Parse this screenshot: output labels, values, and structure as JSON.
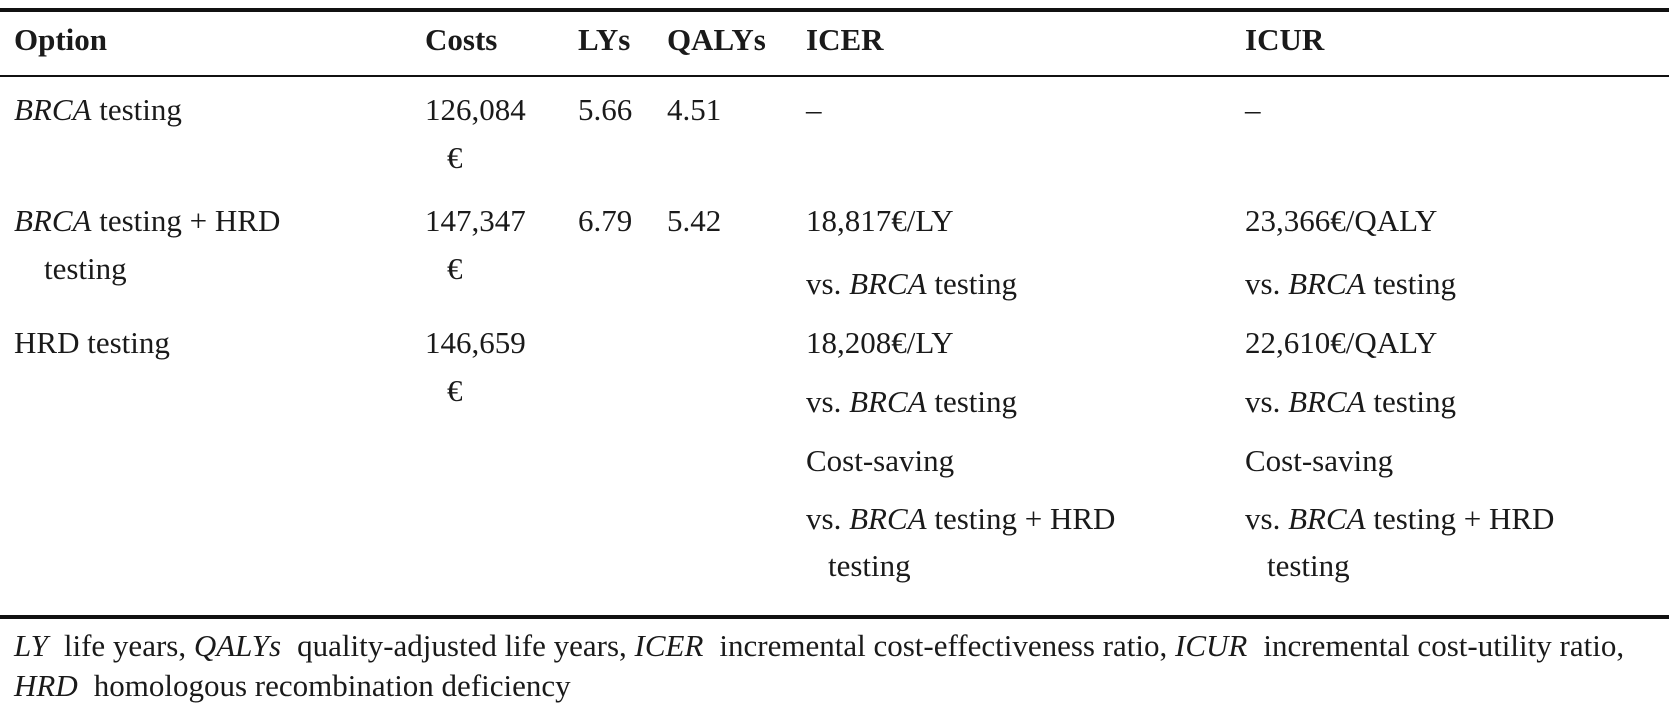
{
  "table": {
    "headers": {
      "option": "Option",
      "costs": "Costs",
      "lys": "LYs",
      "qalys": "QALYs",
      "icer": "ICER",
      "icur": "ICUR"
    },
    "rows": [
      {
        "option_em": "BRCA",
        "option_rest": " testing",
        "option_line2": "",
        "costs_line1": "126,084",
        "costs_line2": "€",
        "lys": "5.66",
        "qalys": "4.51",
        "icer": [
          "–"
        ],
        "icur": [
          "–"
        ]
      },
      {
        "option_em": "BRCA",
        "option_rest": " testing + HRD",
        "option_line2": "testing",
        "costs_line1": "147,347",
        "costs_line2": "€",
        "lys": "6.79",
        "qalys": "5.42",
        "icer_value": "18,817€/LY",
        "icur_value": "23,366€/QALY",
        "vs_prefix": "vs. ",
        "vs_em": "BRCA",
        "vs_rest": " testing"
      },
      {
        "option_text": "HRD testing",
        "costs_line1": "146,659",
        "costs_line2": "€",
        "lys": "",
        "qalys": "",
        "icer_value": "18,208€/LY",
        "icur_value": "22,610€/QALY",
        "vs_prefix": "vs. ",
        "vs_em": "BRCA",
        "vs_rest": " testing",
        "saving": "Cost-saving",
        "vs2_rest": " testing + HRD",
        "vs2_line2": "testing"
      }
    ]
  },
  "footnote": {
    "ly_abbr": "LY",
    "ly_def": "life years,",
    "qalys_abbr": "QALYs",
    "qalys_def": "quality-adjusted life years,",
    "icer_abbr": "ICER",
    "icer_def": "incremental cost-effectiveness ratio,",
    "icur_abbr": "ICUR",
    "icur_def": "incremental cost-utility ratio,",
    "hrd_abbr": "HRD",
    "hrd_def": "homologous recombination deficiency"
  }
}
